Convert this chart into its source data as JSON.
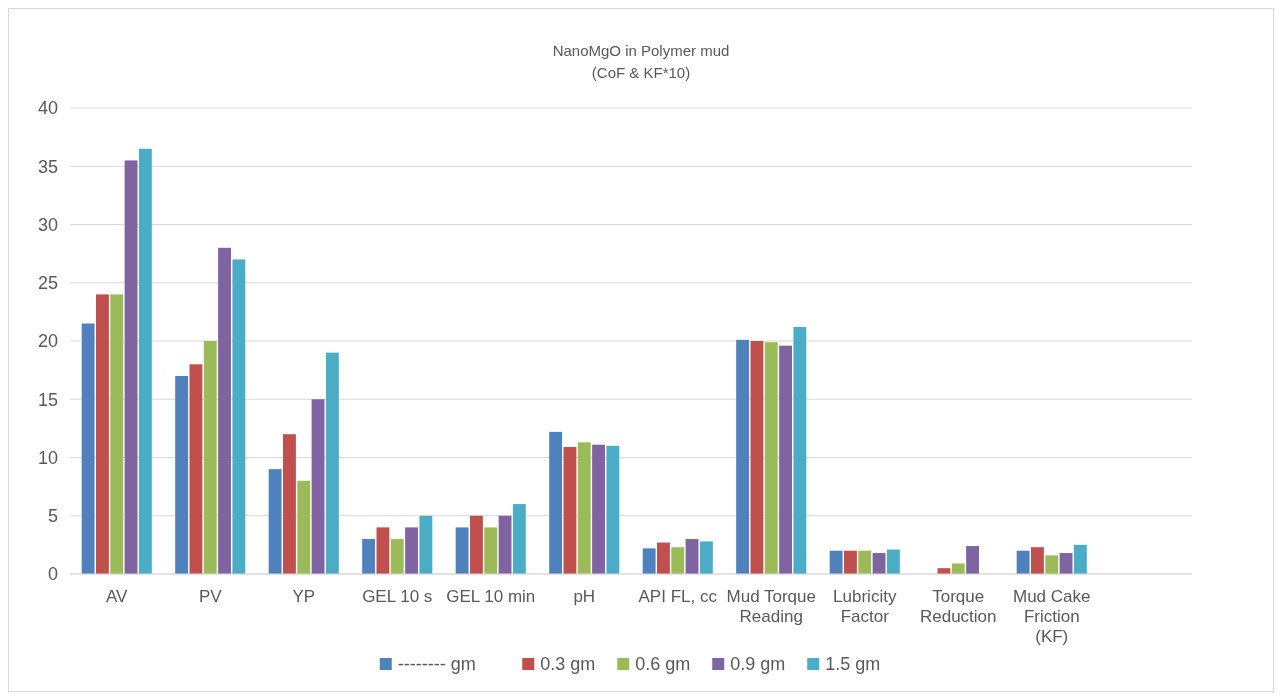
{
  "chart_data": {
    "type": "bar",
    "title": "NanoMgO in Polymer mud",
    "subtitle": "(CoF & KF*10)",
    "categories": [
      "AV",
      "PV",
      "YP",
      "GEL 10 s",
      "GEL 10 min",
      "pH",
      "API FL, cc",
      "Mud Torque Reading",
      "Lubricity Factor",
      "Torque Reduction",
      "Mud Cake Friction (KF)",
      null
    ],
    "series": [
      {
        "name": "-------- gm",
        "color": "#4f81bd",
        "values": [
          21.5,
          17,
          9,
          3,
          4,
          12.2,
          2.2,
          20.1,
          2.0,
          null,
          2.0,
          null
        ]
      },
      {
        "name": "0.3 gm",
        "color": "#c0504d",
        "values": [
          24,
          18,
          12,
          4,
          5,
          10.9,
          2.7,
          20.0,
          2.0,
          0.5,
          2.3,
          null
        ]
      },
      {
        "name": "0.6 gm",
        "color": "#9bbb59",
        "values": [
          24,
          20,
          8,
          3,
          4,
          11.3,
          2.3,
          19.9,
          2.0,
          0.9,
          1.6,
          null
        ]
      },
      {
        "name": "0.9 gm",
        "color": "#8064a2",
        "values": [
          35.5,
          28,
          15,
          4,
          5,
          11.1,
          3.0,
          19.6,
          1.8,
          2.4,
          1.8,
          null
        ]
      },
      {
        "name": "1.5 gm",
        "color": "#4bacc6",
        "values": [
          36.5,
          27,
          19,
          5,
          6,
          11.0,
          2.8,
          21.2,
          2.1,
          null,
          2.5,
          null
        ]
      }
    ],
    "ylim": [
      0,
      40
    ],
    "yticks": [
      0,
      5,
      10,
      15,
      20,
      25,
      30,
      35,
      40
    ],
    "grid": "y",
    "legend": "bottom"
  }
}
